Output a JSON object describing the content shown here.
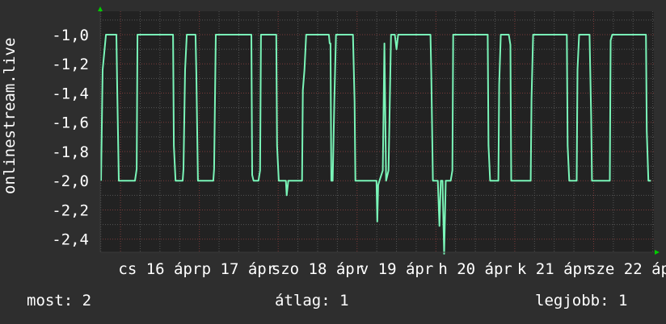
{
  "chart_data": {
    "type": "line",
    "title": "",
    "ylabel": "onlinestream.live",
    "xlabel": "",
    "xlim": [
      "04-15 17:50",
      "04-22 18:20"
    ],
    "ylim": [
      -2.49,
      -0.84
    ],
    "yticks": [
      -1.0,
      -1.2,
      -1.4,
      -1.6,
      -1.8,
      -2.0,
      -2.2,
      -2.4
    ],
    "ytick_labels": [
      "-1,0",
      "-1,2",
      "-1,4",
      "-1,6",
      "-1,8",
      "-2,0",
      "-2,2",
      "-2,4"
    ],
    "xtick_labels": [
      "cs 16 ápr",
      "p 17 ápr",
      "szo 18 ápr",
      "v 19 ápr",
      "h 20 ápr",
      "k 21 ápr",
      "sze 22 ápr"
    ],
    "grid": true,
    "colors": {
      "background": "#2e2e2e",
      "plot": "#222222",
      "line": "#7af5b8",
      "major_grid": "#7a3a3a",
      "minor_grid": "#555555",
      "arrow": "#00cc00"
    },
    "series": [
      {
        "points": [
          [
            "04-15 18:05",
            -2.0
          ],
          [
            "04-15 18:35",
            -1.24
          ],
          [
            "04-15 19:35",
            -1.0
          ],
          [
            "04-15 22:45",
            -1.0
          ],
          [
            "04-15 23:00",
            -1.36
          ],
          [
            "04-15 23:30",
            -2.0
          ],
          [
            "04-16 04:25",
            -2.0
          ],
          [
            "04-16 04:55",
            -1.92
          ],
          [
            "04-16 05:10",
            -1.0
          ],
          [
            "04-16 16:00",
            -1.0
          ],
          [
            "04-16 16:15",
            -1.76
          ],
          [
            "04-16 16:45",
            -2.0
          ],
          [
            "04-16 18:55",
            -2.0
          ],
          [
            "04-16 19:10",
            -1.92
          ],
          [
            "04-16 19:40",
            -1.24
          ],
          [
            "04-16 20:10",
            -1.0
          ],
          [
            "04-16 22:50",
            -1.0
          ],
          [
            "04-16 23:05",
            -1.26
          ],
          [
            "04-16 23:35",
            -2.0
          ],
          [
            "04-17 04:15",
            -2.0
          ],
          [
            "04-17 04:30",
            -1.92
          ],
          [
            "04-17 05:00",
            -1.0
          ],
          [
            "04-17 15:50",
            -1.0
          ],
          [
            "04-17 16:05",
            -1.96
          ],
          [
            "04-17 16:30",
            -2.0
          ],
          [
            "04-17 18:00",
            -2.0
          ],
          [
            "04-17 18:30",
            -1.93
          ],
          [
            "04-17 18:45",
            -1.0
          ],
          [
            "04-17 23:25",
            -1.0
          ],
          [
            "04-17 23:40",
            -1.76
          ],
          [
            "04-18 00:10",
            -2.0
          ],
          [
            "04-18 02:20",
            -2.0
          ],
          [
            "04-18 02:35",
            -2.1
          ],
          [
            "04-18 03:05",
            -2.0
          ],
          [
            "04-18 07:15",
            -2.0
          ],
          [
            "04-18 07:30",
            -1.38
          ],
          [
            "04-18 08:00",
            -1.24
          ],
          [
            "04-18 08:30",
            -1.0
          ],
          [
            "04-18 15:25",
            -1.0
          ],
          [
            "04-18 15:40",
            -1.06
          ],
          [
            "04-18 15:55",
            -1.06
          ],
          [
            "04-18 16:10",
            -2.0
          ],
          [
            "04-18 16:35",
            -2.0
          ],
          [
            "04-18 17:05",
            -1.44
          ],
          [
            "04-18 17:35",
            -1.0
          ],
          [
            "04-18 22:45",
            -1.0
          ],
          [
            "04-18 23:15",
            -1.46
          ],
          [
            "04-18 23:30",
            -2.0
          ],
          [
            "04-19 05:55",
            -2.0
          ],
          [
            "04-19 06:10",
            -2.28
          ],
          [
            "04-19 06:25",
            -2.03
          ],
          [
            "04-19 06:50",
            -2.0
          ],
          [
            "04-19 07:50",
            -1.93
          ],
          [
            "04-19 08:20",
            -1.06
          ],
          [
            "04-19 08:50",
            -2.0
          ],
          [
            "04-19 09:35",
            -1.93
          ],
          [
            "04-19 10:20",
            -1.0
          ],
          [
            "04-19 11:30",
            -1.0
          ],
          [
            "04-19 12:00",
            -1.1
          ],
          [
            "04-19 12:30",
            -1.0
          ],
          [
            "04-19 22:20",
            -1.0
          ],
          [
            "04-19 22:35",
            -1.27
          ],
          [
            "04-19 23:05",
            -2.0
          ],
          [
            "04-20 00:35",
            -2.0
          ],
          [
            "04-20 01:05",
            -2.31
          ],
          [
            "04-20 01:30",
            -2.0
          ],
          [
            "04-20 02:00",
            -2.0
          ],
          [
            "04-20 02:30",
            -2.5
          ],
          [
            "04-20 03:00",
            -2.0
          ],
          [
            "04-20 04:30",
            -2.0
          ],
          [
            "04-20 05:00",
            -1.93
          ],
          [
            "04-20 05:15",
            -1.0
          ],
          [
            "04-20 15:45",
            -1.0
          ],
          [
            "04-20 16:00",
            -1.76
          ],
          [
            "04-20 16:30",
            -2.0
          ],
          [
            "04-20 19:00",
            -2.0
          ],
          [
            "04-20 19:15",
            -1.34
          ],
          [
            "04-20 19:45",
            -1.0
          ],
          [
            "04-20 22:10",
            -1.0
          ],
          [
            "04-20 22:40",
            -1.07
          ],
          [
            "04-20 22:55",
            -2.0
          ],
          [
            "04-21 04:50",
            -2.0
          ],
          [
            "04-21 05:05",
            -1.44
          ],
          [
            "04-21 05:35",
            -1.0
          ],
          [
            "04-21 15:50",
            -1.0
          ],
          [
            "04-21 16:05",
            -1.76
          ],
          [
            "04-21 16:35",
            -2.0
          ],
          [
            "04-21 18:50",
            -2.0
          ],
          [
            "04-21 19:05",
            -1.24
          ],
          [
            "04-21 19:35",
            -1.0
          ],
          [
            "04-21 22:45",
            -1.0
          ],
          [
            "04-21 23:15",
            -1.56
          ],
          [
            "04-21 23:30",
            -2.0
          ],
          [
            "04-22 04:55",
            -2.0
          ],
          [
            "04-22 05:10",
            -1.04
          ],
          [
            "04-22 05:40",
            -1.0
          ],
          [
            "04-22 15:55",
            -1.0
          ],
          [
            "04-22 16:10",
            -1.66
          ],
          [
            "04-22 16:40",
            -2.0
          ],
          [
            "04-22 17:25",
            -2.0
          ]
        ]
      }
    ]
  },
  "legend": {
    "current": "most: 2",
    "average": "átlag: 1",
    "best": "legjobb: 1"
  }
}
